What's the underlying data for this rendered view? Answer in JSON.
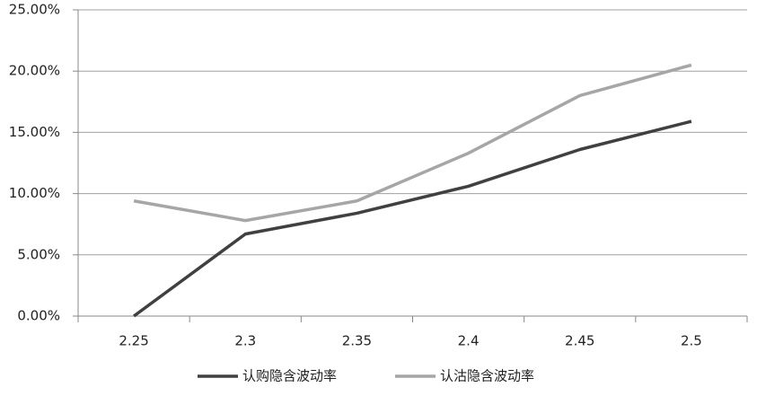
{
  "chart_data": {
    "type": "line",
    "categories": [
      "2.25",
      "2.3",
      "2.35",
      "2.4",
      "2.45",
      "2.5"
    ],
    "series": [
      {
        "name": "认购隐含波动率",
        "color": "#404040",
        "values": [
          0,
          6.7,
          8.4,
          10.6,
          13.6,
          15.9
        ]
      },
      {
        "name": "认沽隐含波动率",
        "color": "#a6a6a6",
        "values": [
          9.4,
          7.8,
          9.4,
          13.3,
          18.0,
          20.5
        ]
      }
    ],
    "ylim": [
      0,
      25
    ],
    "yticks": [
      {
        "value": 0,
        "label": "0.00%"
      },
      {
        "value": 5,
        "label": "5.00%"
      },
      {
        "value": 10,
        "label": "10.00%"
      },
      {
        "value": 15,
        "label": "15.00%"
      },
      {
        "value": 20,
        "label": "20.00%"
      },
      {
        "value": 25,
        "label": "25.00%"
      }
    ],
    "grid": true,
    "legend": "bottom"
  }
}
